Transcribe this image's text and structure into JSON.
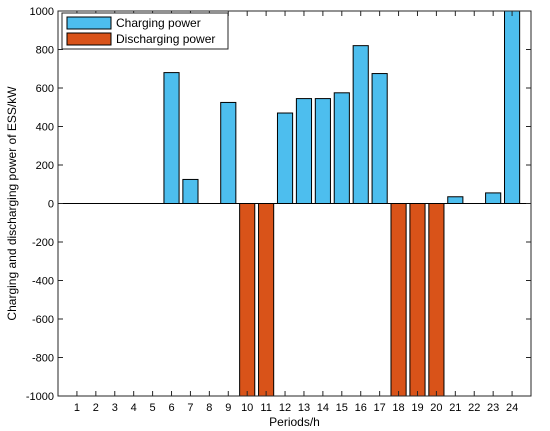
{
  "chart_data": {
    "type": "bar",
    "xlabel": "Periods/h",
    "ylabel": "Charging and discharging power of ESS/kW",
    "ylim": [
      -1000,
      1000
    ],
    "yticks": [
      -1000,
      -800,
      -600,
      -400,
      -200,
      0,
      200,
      400,
      600,
      800,
      1000
    ],
    "categories": [
      "1",
      "2",
      "3",
      "4",
      "5",
      "6",
      "7",
      "8",
      "9",
      "10",
      "11",
      "12",
      "13",
      "14",
      "15",
      "16",
      "17",
      "18",
      "19",
      "20",
      "21",
      "22",
      "23",
      "24"
    ],
    "series": [
      {
        "name": "Charging power",
        "color": "#4DBEEE",
        "values": [
          0,
          0,
          0,
          0,
          0,
          680,
          125,
          0,
          525,
          0,
          0,
          470,
          545,
          545,
          575,
          820,
          675,
          0,
          0,
          0,
          35,
          0,
          55,
          1000
        ]
      },
      {
        "name": "Discharging power",
        "color": "#D95319",
        "values": [
          0,
          0,
          0,
          0,
          0,
          0,
          0,
          0,
          0,
          -1000,
          -1000,
          0,
          0,
          0,
          0,
          0,
          0,
          -1000,
          -1000,
          -1000,
          0,
          0,
          0,
          0
        ]
      }
    ],
    "legend_position": "top-left",
    "grid": false
  }
}
